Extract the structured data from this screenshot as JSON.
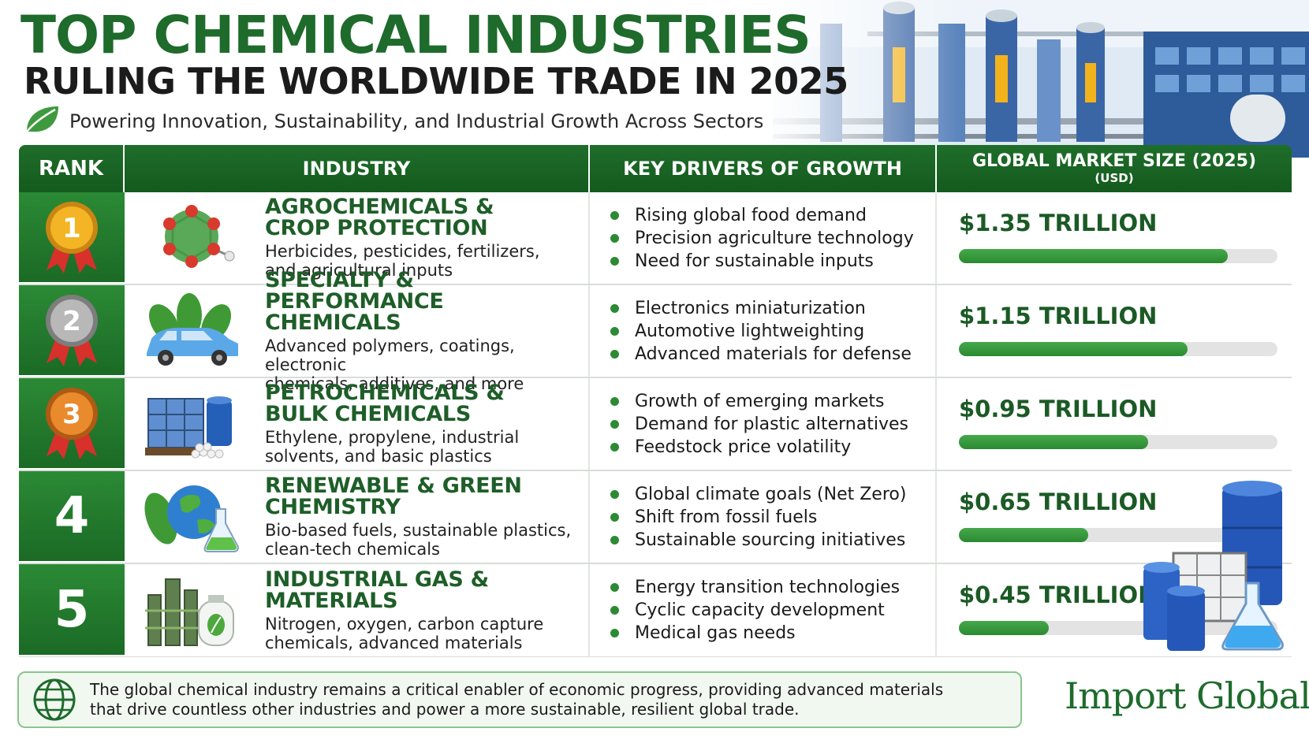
{
  "header": {
    "title_line1": "TOP CHEMICAL INDUSTRIES",
    "title_line2": "RULING THE WORLDWIDE TRADE IN 2025",
    "subtitle": "Powering Innovation, Sustainability, and Industrial Growth Across Sectors",
    "subtitle_icon": "leaf-icon"
  },
  "table_header": {
    "rank": "RANK",
    "industry": "INDUSTRY",
    "drivers": "KEY DRIVERS OF GROWTH",
    "market": "GLOBAL MARKET SIZE (2025)",
    "market_unit": "(USD)"
  },
  "chart_data": {
    "type": "bar",
    "orientation": "horizontal",
    "title": "",
    "xlabel": "",
    "ylabel": "",
    "categories": [
      "AGROCHEMICALS & CROP PROTECTION",
      "SPECIALTY & PERFORMANCE CHEMICALS",
      "PETROCHEMICALS & BULK CHEMICALS",
      "RENEWABLE & GREEN CHEMISTRY",
      "INDUSTRIAL GAS & MATERIALS"
    ],
    "values": [
      1.35,
      1.15,
      0.95,
      0.65,
      0.45
    ],
    "value_labels": [
      "$1.35 TRILLION",
      "$1.15 TRILLION",
      "$0.95 TRILLION",
      "$0.65 TRILLION",
      "$0.45 TRILLION"
    ],
    "xlim": [
      0,
      1.6
    ],
    "grid": false,
    "bar_color": "#2f8f35",
    "track_color": "#e3e3e3"
  },
  "rows": [
    {
      "rank": "1",
      "medal": "gold-medal-icon",
      "name_lines": [
        "AGROCHEMICALS &",
        "CROP PROTECTION"
      ],
      "desc_lines": [
        "Herbicides, pesticides, fertilizers,",
        "and agricultural inputs"
      ],
      "drivers": [
        "Rising global food demand",
        "Precision agriculture technology",
        "Need for sustainable inputs"
      ]
    },
    {
      "rank": "2",
      "medal": "silver-medal-icon",
      "name_lines": [
        "SPECIALTY & PERFORMANCE",
        "CHEMICALS"
      ],
      "desc_lines": [
        "Advanced polymers, coatings, electronic",
        "chemicals, additives, and more"
      ],
      "drivers": [
        "Electronics miniaturization",
        "Automotive lightweighting",
        "Advanced materials for defense"
      ]
    },
    {
      "rank": "3",
      "medal": "bronze-medal-icon",
      "name_lines": [
        "PETROCHEMICALS &",
        "BULK CHEMICALS"
      ],
      "desc_lines": [
        "Ethylene, propylene, industrial",
        "solvents, and basic plastics"
      ],
      "drivers": [
        "Growth of emerging markets",
        "Demand for plastic alternatives",
        "Feedstock price volatility"
      ]
    },
    {
      "rank": "4",
      "medal": "",
      "name_lines": [
        "RENEWABLE & GREEN",
        "CHEMISTRY"
      ],
      "desc_lines": [
        "Bio-based fuels, sustainable plastics,",
        "clean-tech chemicals"
      ],
      "drivers": [
        "Global climate goals (Net Zero)",
        "Shift from fossil fuels",
        "Sustainable sourcing initiatives"
      ]
    },
    {
      "rank": "5",
      "medal": "",
      "name_lines": [
        "INDUSTRIAL GAS & MATERIALS"
      ],
      "desc_lines": [
        "Nitrogen, oxygen, carbon capture",
        "chemicals, advanced materials"
      ],
      "drivers": [
        "Energy transition technologies",
        "Cyclic capacity development",
        "Medical gas needs"
      ]
    }
  ],
  "footer": {
    "text_line1": "The global chemical industry remains a critical enabler of economic progress, providing advanced materials",
    "text_line2": "that drive countless other industries and power a more sustainable, resilient global trade.",
    "icon": "globe-icon",
    "brand": "Import Globals"
  },
  "colors": {
    "primary_green": "#1e6b2c",
    "header_green": "#145a1e",
    "bar_green": "#2f8f35",
    "gold": "#e9a21c",
    "silver": "#9a9a9a",
    "bronze": "#d9731f"
  }
}
